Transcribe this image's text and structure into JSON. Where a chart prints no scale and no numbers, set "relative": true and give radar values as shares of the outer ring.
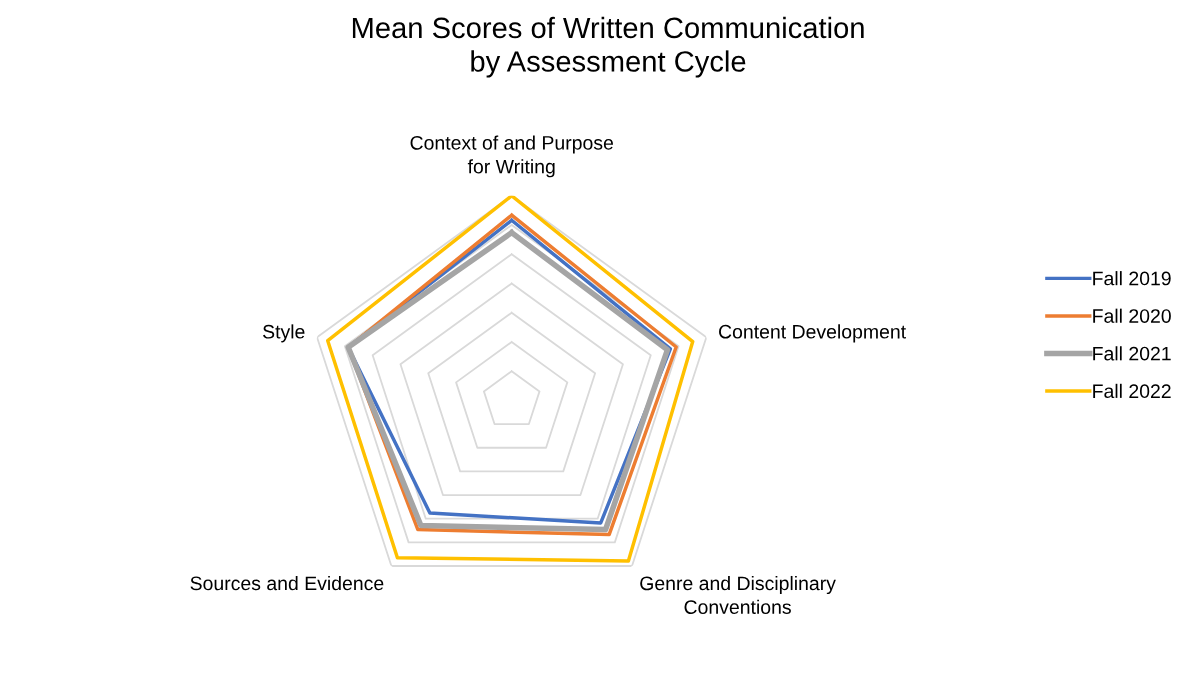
{
  "chart_data": {
    "type": "radar",
    "title": "Mean Scores of Written Communication\nby Assessment Cycle",
    "categories": [
      "Context of and Purpose\nfor Writing",
      "Content Development",
      "Genre and Disciplinary\nConventions",
      "Sources and Evidence",
      "Style"
    ],
    "relative": true,
    "grid": true,
    "legend": "right",
    "series": [
      {
        "name": "Fall 2019",
        "color": "#4472c4",
        "values": [
          0.88,
          0.815,
          0.74,
          0.68,
          0.84
        ]
      },
      {
        "name": "Fall 2020",
        "color": "#ed7d31",
        "values": [
          0.905,
          0.845,
          0.81,
          0.78,
          0.84
        ]
      },
      {
        "name": "Fall 2021",
        "color": "#a5a5a5",
        "values": [
          0.82,
          0.8,
          0.78,
          0.755,
          0.84
        ]
      },
      {
        "name": "Fall 2022",
        "color": "#ffc000",
        "values": [
          1.0,
          0.93,
          0.97,
          0.95,
          0.945
        ]
      }
    ]
  }
}
